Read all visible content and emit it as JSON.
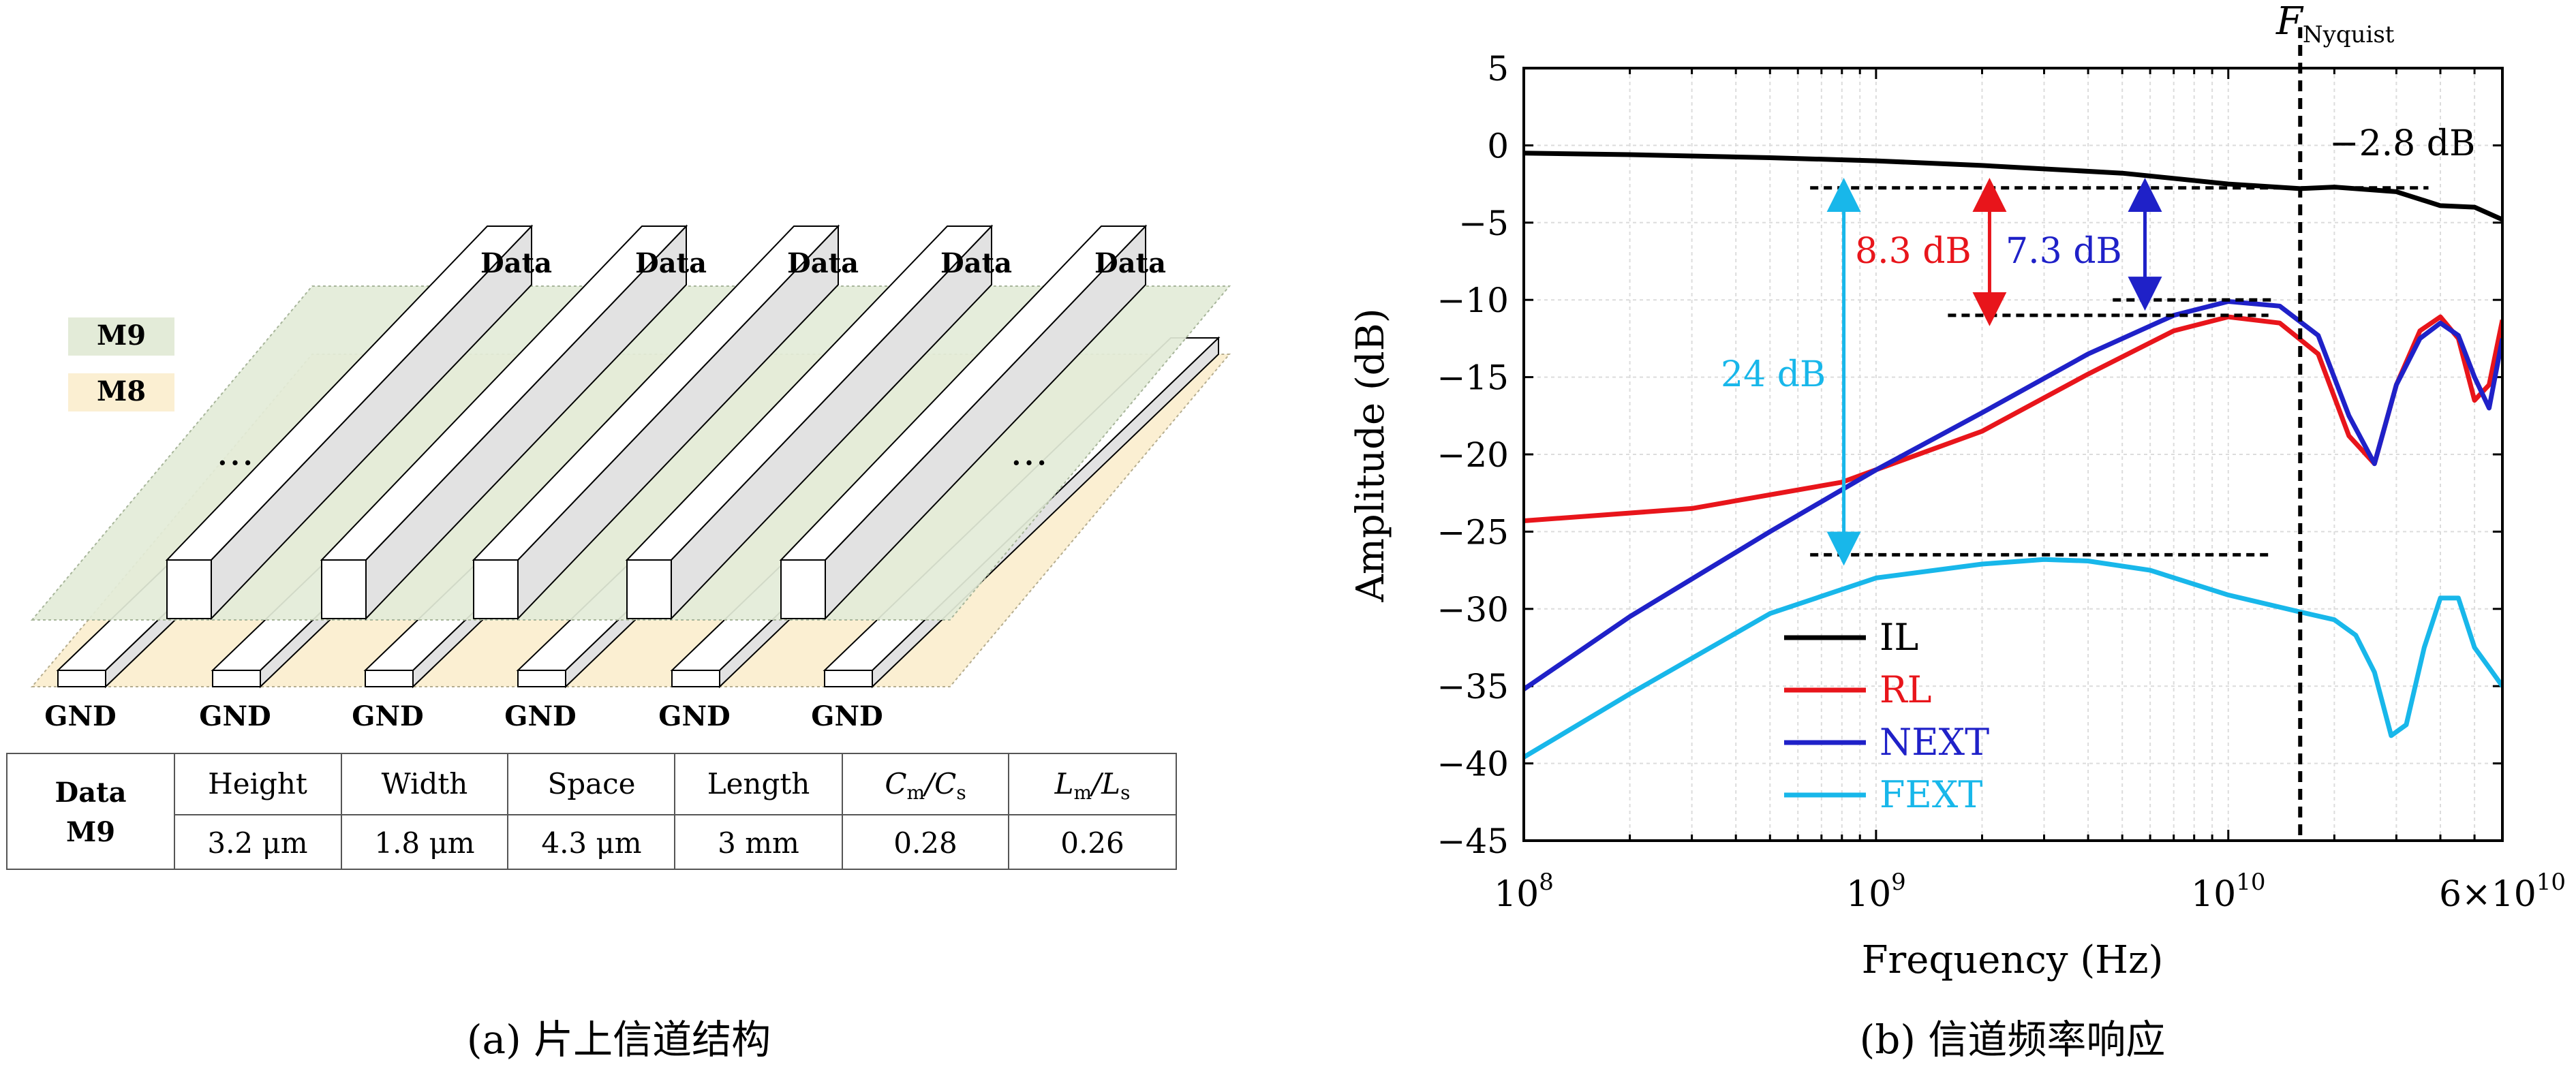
{
  "panel_a": {
    "data_labels": [
      "Data",
      "Data",
      "Data",
      "Data",
      "Data"
    ],
    "gnd_labels": [
      "GND",
      "GND",
      "GND",
      "GND",
      "GND",
      "GND"
    ],
    "legend": [
      {
        "label": "M9",
        "color": "#e3ebd8"
      },
      {
        "label": "M8",
        "color": "#fbefd2"
      }
    ],
    "ellipsis": [
      "…",
      "…"
    ],
    "table": {
      "row_header": [
        "Data",
        "M9"
      ],
      "headers": [
        "Height",
        "Width",
        "Space",
        "Length",
        "Cm/Cs",
        "Lm/Ls"
      ],
      "values": [
        "3.2 μm",
        "1.8 μm",
        "4.3 μm",
        "3 mm",
        "0.28",
        "0.26"
      ]
    },
    "caption": "(a) 片上信道结构"
  },
  "panel_b": {
    "caption": "(b) 信道频率响应",
    "nyquist_label": "F",
    "nyquist_sub": "Nyquist",
    "annotations": {
      "il_text": "−2.8 dB",
      "rl_text": "8.3 dB",
      "next_text": "7.3 dB",
      "fext_text": "24 dB"
    },
    "x_tick_labels": [
      {
        "base": "10",
        "exp": "8"
      },
      {
        "base": "10",
        "exp": "9"
      },
      {
        "base": "10",
        "exp": "10"
      },
      {
        "base": "6×10",
        "exp": "10"
      }
    ]
  },
  "chart_data": {
    "type": "line",
    "xlabel": "Frequency (Hz)",
    "ylabel": "Amplitude (dB)",
    "xscale": "log",
    "xlim": [
      100000000.0,
      60000000000.0
    ],
    "ylim": [
      -45,
      5
    ],
    "yticks": [
      5,
      0,
      -5,
      -10,
      -15,
      -20,
      -25,
      -30,
      -35,
      -40,
      -45
    ],
    "grid": true,
    "legend_position": "lower-left",
    "nyquist_frequency": 16000000000.0,
    "series": [
      {
        "name": "IL",
        "color": "#000000",
        "x": [
          100000000.0,
          200000000.0,
          500000000.0,
          1000000000.0,
          2000000000.0,
          5000000000.0,
          10000000000.0,
          16000000000.0,
          20000000000.0,
          30000000000.0,
          40000000000.0,
          50000000000.0,
          60000000000.0
        ],
        "y": [
          -0.5,
          -0.6,
          -0.8,
          -1.0,
          -1.3,
          -1.8,
          -2.5,
          -2.8,
          -2.7,
          -3.0,
          -3.9,
          -4.0,
          -4.8
        ]
      },
      {
        "name": "RL",
        "color": "#e8151b",
        "x": [
          100000000.0,
          300000000.0,
          800000000.0,
          2000000000.0,
          4000000000.0,
          7000000000.0,
          10000000000.0,
          14000000000.0,
          18000000000.0,
          22000000000.0,
          26000000000.0,
          30000000000.0,
          35000000000.0,
          40000000000.0,
          45000000000.0,
          50000000000.0,
          55000000000.0,
          60000000000.0
        ],
        "y": [
          -24.3,
          -23.5,
          -21.8,
          -18.5,
          -14.8,
          -12.0,
          -11.1,
          -11.5,
          -13.5,
          -18.8,
          -20.6,
          -15.5,
          -12.0,
          -11.1,
          -12.5,
          -16.5,
          -15.5,
          -11.3
        ]
      },
      {
        "name": "NEXT",
        "color": "#1f21c8",
        "x": [
          100000000.0,
          200000000.0,
          500000000.0,
          1000000000.0,
          2000000000.0,
          4000000000.0,
          7000000000.0,
          10000000000.0,
          14000000000.0,
          18000000000.0,
          22000000000.0,
          26000000000.0,
          30000000000.0,
          35000000000.0,
          40000000000.0,
          45000000000.0,
          50000000000.0,
          55000000000.0,
          60000000000.0
        ],
        "y": [
          -35.2,
          -30.5,
          -25.0,
          -21.0,
          -17.3,
          -13.5,
          -11.0,
          -10.1,
          -10.4,
          -12.3,
          -17.5,
          -20.6,
          -15.5,
          -12.5,
          -11.5,
          -12.3,
          -15.0,
          -17.0,
          -12.5
        ]
      },
      {
        "name": "FEXT",
        "color": "#18b7ea",
        "x": [
          100000000.0,
          200000000.0,
          500000000.0,
          1000000000.0,
          2000000000.0,
          3000000000.0,
          4000000000.0,
          6000000000.0,
          10000000000.0,
          16000000000.0,
          20000000000.0,
          23000000000.0,
          26000000000.0,
          29000000000.0,
          32000000000.0,
          36000000000.0,
          40000000000.0,
          45000000000.0,
          50000000000.0,
          55000000000.0,
          60000000000.0
        ],
        "y": [
          -39.6,
          -35.5,
          -30.3,
          -28.0,
          -27.1,
          -26.8,
          -26.9,
          -27.5,
          -29.1,
          -30.2,
          -30.7,
          -31.7,
          -34.1,
          -38.2,
          -37.5,
          -32.5,
          -29.3,
          -29.3,
          -32.5,
          -33.8,
          -35.0
        ]
      }
    ]
  }
}
